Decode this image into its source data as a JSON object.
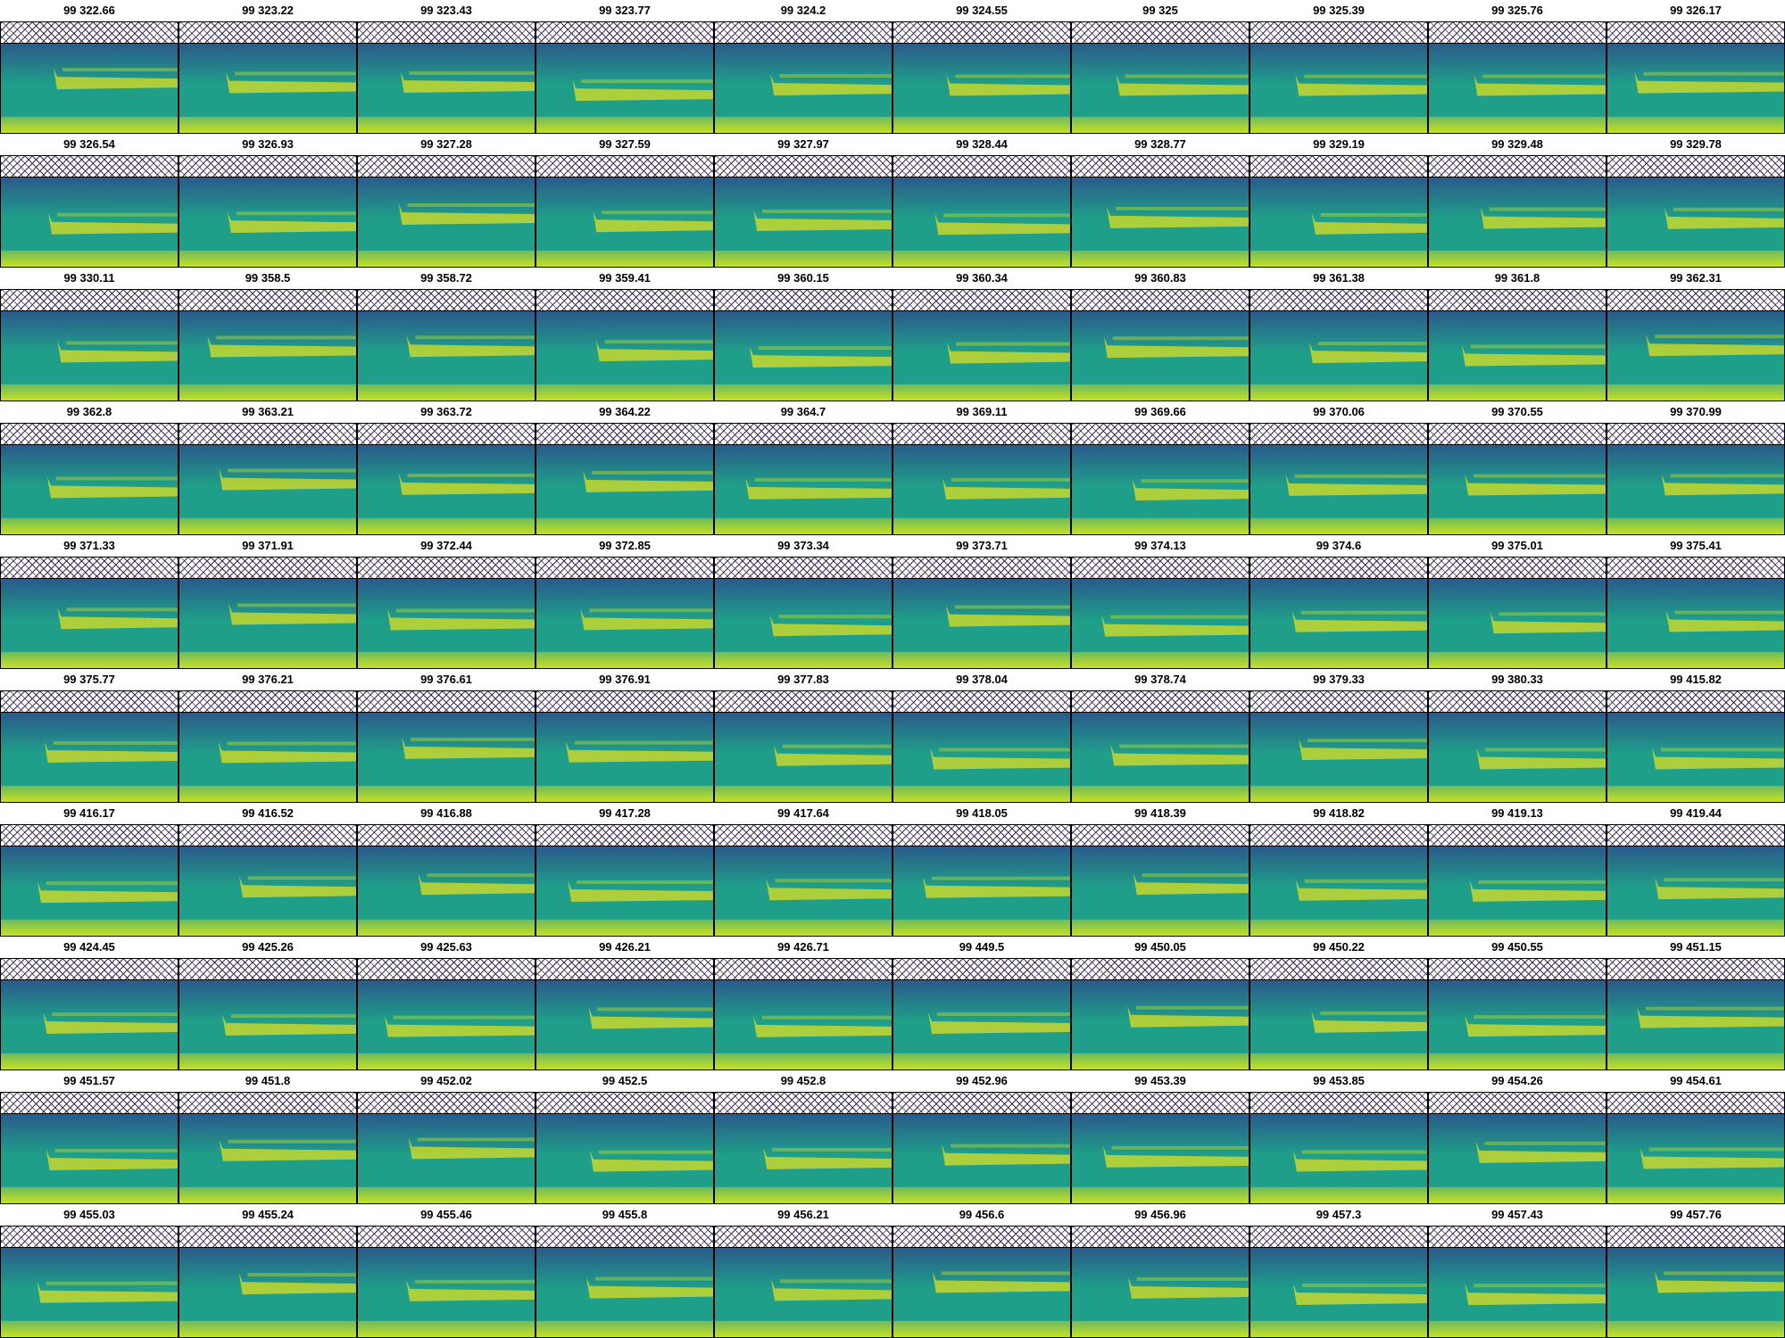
{
  "colors": {
    "spectrogram_low": "#2a5a8c",
    "spectrogram_mid": "#1f9e89",
    "spectrogram_high": "#b5de2b",
    "spectrogram_peak": "#e8e419",
    "hatch": "#3d2a54"
  },
  "tiles": [
    {
      "label": "99 322.66"
    },
    {
      "label": "99 323.22"
    },
    {
      "label": "99 323.43"
    },
    {
      "label": "99 323.77"
    },
    {
      "label": "99 324.2"
    },
    {
      "label": "99 324.55"
    },
    {
      "label": "99 325"
    },
    {
      "label": "99 325.39"
    },
    {
      "label": "99 325.76"
    },
    {
      "label": "99 326.17"
    },
    {
      "label": "99 326.54"
    },
    {
      "label": "99 326.93"
    },
    {
      "label": "99 327.28"
    },
    {
      "label": "99 327.59"
    },
    {
      "label": "99 327.97"
    },
    {
      "label": "99 328.44"
    },
    {
      "label": "99 328.77"
    },
    {
      "label": "99 329.19"
    },
    {
      "label": "99 329.48"
    },
    {
      "label": "99 329.78"
    },
    {
      "label": "99 330.11"
    },
    {
      "label": "99 358.5"
    },
    {
      "label": "99 358.72"
    },
    {
      "label": "99 359.41"
    },
    {
      "label": "99 360.15"
    },
    {
      "label": "99 360.34"
    },
    {
      "label": "99 360.83"
    },
    {
      "label": "99 361.38"
    },
    {
      "label": "99 361.8"
    },
    {
      "label": "99 362.31"
    },
    {
      "label": "99 362.8"
    },
    {
      "label": "99 363.21"
    },
    {
      "label": "99 363.72"
    },
    {
      "label": "99 364.22"
    },
    {
      "label": "99 364.7"
    },
    {
      "label": "99 369.11"
    },
    {
      "label": "99 369.66"
    },
    {
      "label": "99 370.06"
    },
    {
      "label": "99 370.55"
    },
    {
      "label": "99 370.99"
    },
    {
      "label": "99 371.33"
    },
    {
      "label": "99 371.91"
    },
    {
      "label": "99 372.44"
    },
    {
      "label": "99 372.85"
    },
    {
      "label": "99 373.34"
    },
    {
      "label": "99 373.71"
    },
    {
      "label": "99 374.13"
    },
    {
      "label": "99 374.6"
    },
    {
      "label": "99 375.01"
    },
    {
      "label": "99 375.41"
    },
    {
      "label": "99 375.77"
    },
    {
      "label": "99 376.21"
    },
    {
      "label": "99 376.61"
    },
    {
      "label": "99 376.91"
    },
    {
      "label": "99 377.83"
    },
    {
      "label": "99 378.04"
    },
    {
      "label": "99 378.74"
    },
    {
      "label": "99 379.33"
    },
    {
      "label": "99 380.33"
    },
    {
      "label": "99 415.82"
    },
    {
      "label": "99 416.17"
    },
    {
      "label": "99 416.52"
    },
    {
      "label": "99 416.88"
    },
    {
      "label": "99 417.28"
    },
    {
      "label": "99 417.64"
    },
    {
      "label": "99 418.05"
    },
    {
      "label": "99 418.39"
    },
    {
      "label": "99 418.82"
    },
    {
      "label": "99 419.13"
    },
    {
      "label": "99 419.44"
    },
    {
      "label": "99 424.45"
    },
    {
      "label": "99 425.26"
    },
    {
      "label": "99 425.63"
    },
    {
      "label": "99 426.21"
    },
    {
      "label": "99 426.71"
    },
    {
      "label": "99 449.5"
    },
    {
      "label": "99 450.05"
    },
    {
      "label": "99 450.22"
    },
    {
      "label": "99 450.55"
    },
    {
      "label": "99 451.15"
    },
    {
      "label": "99 451.57"
    },
    {
      "label": "99 451.8"
    },
    {
      "label": "99 452.02"
    },
    {
      "label": "99 452.5"
    },
    {
      "label": "99 452.8"
    },
    {
      "label": "99 452.96"
    },
    {
      "label": "99 453.39"
    },
    {
      "label": "99 453.85"
    },
    {
      "label": "99 454.26"
    },
    {
      "label": "99 454.61"
    },
    {
      "label": "99 455.03"
    },
    {
      "label": "99 455.24"
    },
    {
      "label": "99 455.46"
    },
    {
      "label": "99 455.8"
    },
    {
      "label": "99 456.21"
    },
    {
      "label": "99 456.6"
    },
    {
      "label": "99 456.96"
    },
    {
      "label": "99 457.3"
    },
    {
      "label": "99 457.43"
    },
    {
      "label": "99 457.76"
    }
  ]
}
